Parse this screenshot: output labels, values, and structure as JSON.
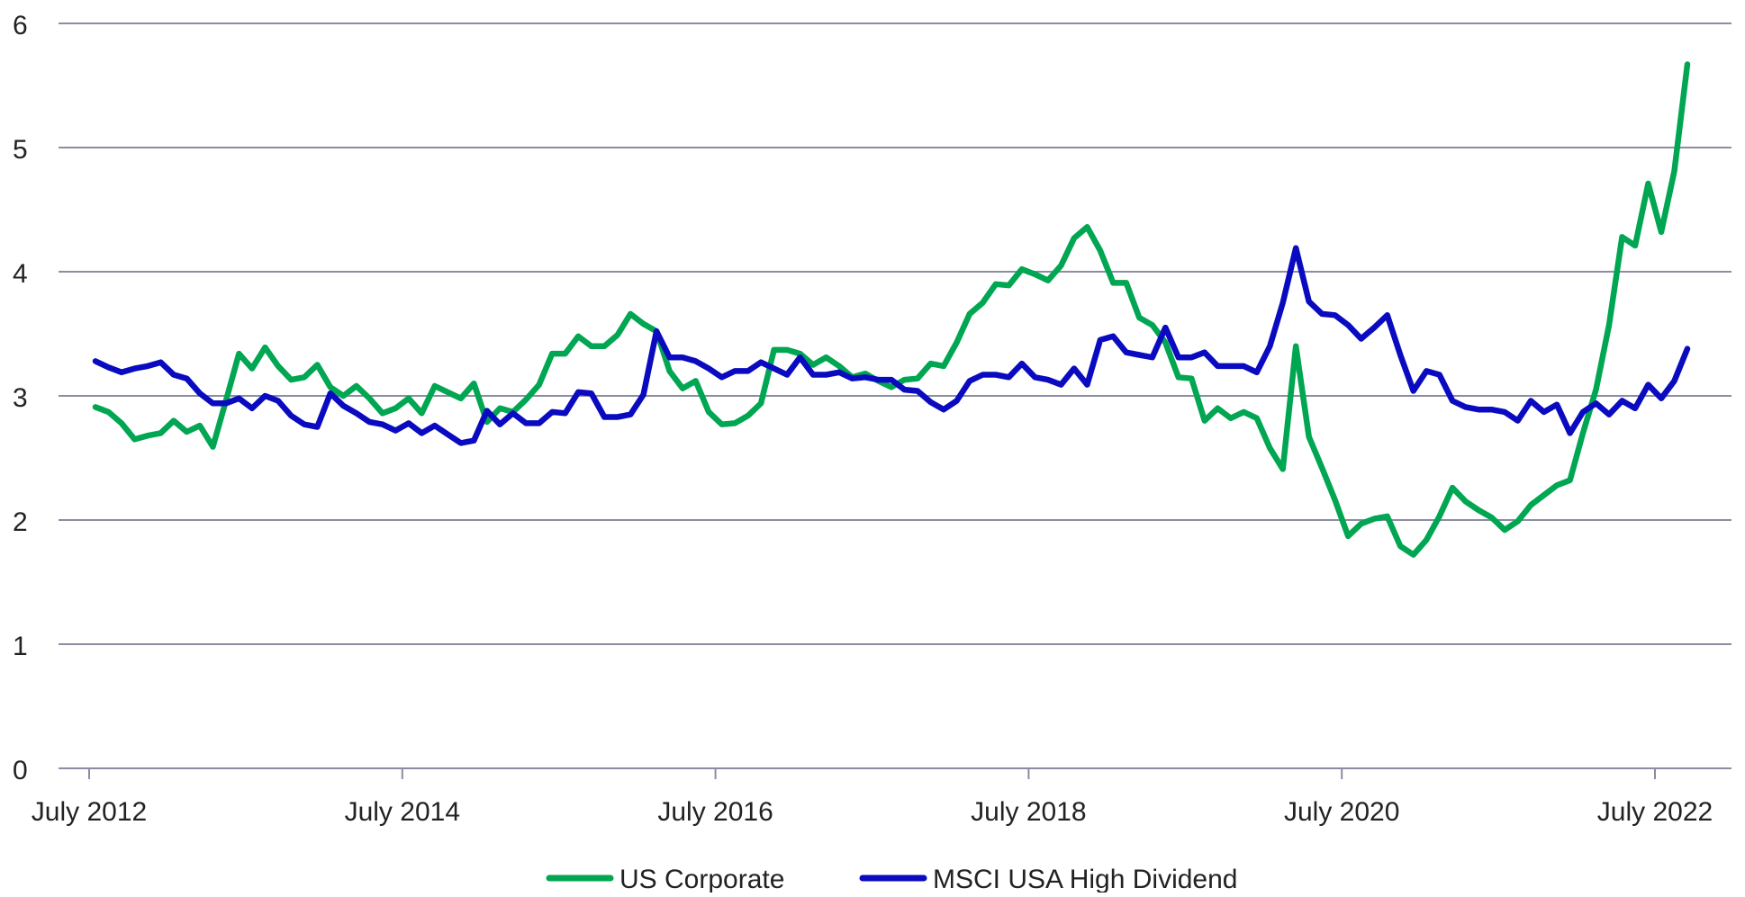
{
  "chart_data": {
    "type": "line",
    "title": "",
    "xlabel": "",
    "ylabel": "",
    "ylim": [
      0,
      6
    ],
    "yticks": [
      "0",
      "1",
      "2",
      "3",
      "4",
      "5",
      "6"
    ],
    "xtick_labels": [
      "July 2012",
      "July 2014",
      "July 2016",
      "July 2018",
      "July 2020",
      "July 2022"
    ],
    "xtick_dates": [
      "2012-07",
      "2014-07",
      "2016-07",
      "2018-07",
      "2020-07",
      "2022-07"
    ],
    "grid": "horizontal",
    "legend_position": "bottom",
    "x": [
      "2012-07",
      "2012-08",
      "2012-09",
      "2012-10",
      "2012-11",
      "2012-12",
      "2013-01",
      "2013-02",
      "2013-03",
      "2013-04",
      "2013-05",
      "2013-06",
      "2013-07",
      "2013-08",
      "2013-09",
      "2013-10",
      "2013-11",
      "2013-12",
      "2014-01",
      "2014-02",
      "2014-03",
      "2014-04",
      "2014-05",
      "2014-06",
      "2014-07",
      "2014-08",
      "2014-09",
      "2014-10",
      "2014-11",
      "2014-12",
      "2015-01",
      "2015-02",
      "2015-03",
      "2015-04",
      "2015-05",
      "2015-06",
      "2015-07",
      "2015-08",
      "2015-09",
      "2015-10",
      "2015-11",
      "2015-12",
      "2016-01",
      "2016-02",
      "2016-03",
      "2016-04",
      "2016-05",
      "2016-06",
      "2016-07",
      "2016-08",
      "2016-09",
      "2016-10",
      "2016-11",
      "2016-12",
      "2017-01",
      "2017-02",
      "2017-03",
      "2017-04",
      "2017-05",
      "2017-06",
      "2017-07",
      "2017-08",
      "2017-09",
      "2017-10",
      "2017-11",
      "2017-12",
      "2018-01",
      "2018-02",
      "2018-03",
      "2018-04",
      "2018-05",
      "2018-06",
      "2018-07",
      "2018-08",
      "2018-09",
      "2018-10",
      "2018-11",
      "2018-12",
      "2019-01",
      "2019-02",
      "2019-03",
      "2019-04",
      "2019-05",
      "2019-06",
      "2019-07",
      "2019-08",
      "2019-09",
      "2019-10",
      "2019-11",
      "2019-12",
      "2020-01",
      "2020-02",
      "2020-03",
      "2020-04",
      "2020-05",
      "2020-06",
      "2020-07",
      "2020-08",
      "2020-09",
      "2020-10",
      "2020-11",
      "2020-12",
      "2021-01",
      "2021-02",
      "2021-03",
      "2021-04",
      "2021-05",
      "2021-06",
      "2021-07",
      "2021-08",
      "2021-09",
      "2021-10",
      "2021-11",
      "2021-12",
      "2022-01",
      "2022-02",
      "2022-03",
      "2022-04",
      "2022-05",
      "2022-06",
      "2022-07",
      "2022-08",
      "2022-09"
    ],
    "series": [
      {
        "name": "US Corporate",
        "color": "#00a651",
        "values": [
          2.91,
          2.87,
          2.78,
          2.65,
          2.68,
          2.7,
          2.8,
          2.71,
          2.76,
          2.59,
          2.96,
          3.34,
          3.22,
          3.39,
          3.24,
          3.13,
          3.15,
          3.25,
          3.07,
          3.0,
          3.08,
          2.98,
          2.86,
          2.9,
          2.98,
          2.86,
          3.08,
          3.03,
          2.98,
          3.1,
          2.79,
          2.9,
          2.87,
          2.97,
          3.09,
          3.34,
          3.34,
          3.48,
          3.4,
          3.4,
          3.49,
          3.66,
          3.58,
          3.52,
          3.2,
          3.06,
          3.12,
          2.87,
          2.77,
          2.78,
          2.84,
          2.94,
          3.37,
          3.37,
          3.34,
          3.25,
          3.31,
          3.24,
          3.15,
          3.18,
          3.12,
          3.07,
          3.13,
          3.14,
          3.26,
          3.24,
          3.43,
          3.66,
          3.75,
          3.9,
          3.89,
          4.02,
          3.98,
          3.93,
          4.05,
          4.27,
          4.36,
          4.17,
          3.91,
          3.91,
          3.63,
          3.57,
          3.43,
          3.15,
          3.14,
          2.8,
          2.9,
          2.82,
          2.87,
          2.82,
          2.58,
          2.41,
          3.4,
          2.67,
          2.42,
          2.16,
          1.87,
          1.97,
          2.01,
          2.03,
          1.79,
          1.72,
          1.84,
          2.03,
          2.26,
          2.15,
          2.08,
          2.02,
          1.92,
          1.99,
          2.12,
          2.2,
          2.28,
          2.32,
          2.7,
          3.05,
          3.57,
          4.28,
          4.21,
          4.71,
          4.32,
          4.81,
          5.67
        ]
      },
      {
        "name": "MSCI USA High Dividend",
        "color": "#0a0ac0",
        "values": [
          3.28,
          3.23,
          3.19,
          3.22,
          3.24,
          3.27,
          3.17,
          3.14,
          3.02,
          2.94,
          2.94,
          2.98,
          2.9,
          3.0,
          2.96,
          2.84,
          2.77,
          2.75,
          3.02,
          2.92,
          2.86,
          2.79,
          2.77,
          2.72,
          2.78,
          2.7,
          2.76,
          2.69,
          2.62,
          2.64,
          2.88,
          2.77,
          2.86,
          2.78,
          2.78,
          2.87,
          2.86,
          3.03,
          3.02,
          2.83,
          2.83,
          2.85,
          3.01,
          3.52,
          3.31,
          3.31,
          3.28,
          3.22,
          3.15,
          3.2,
          3.2,
          3.27,
          3.22,
          3.17,
          3.31,
          3.17,
          3.17,
          3.19,
          3.14,
          3.15,
          3.13,
          3.13,
          3.05,
          3.04,
          2.95,
          2.89,
          2.96,
          3.12,
          3.17,
          3.17,
          3.15,
          3.26,
          3.15,
          3.13,
          3.09,
          3.22,
          3.09,
          3.45,
          3.48,
          3.35,
          3.33,
          3.31,
          3.55,
          3.31,
          3.31,
          3.35,
          3.24,
          3.24,
          3.24,
          3.19,
          3.4,
          3.75,
          4.19,
          3.76,
          3.66,
          3.65,
          3.57,
          3.46,
          3.55,
          3.65,
          3.33,
          3.04,
          3.2,
          3.17,
          2.96,
          2.91,
          2.89,
          2.89,
          2.87,
          2.8,
          2.96,
          2.87,
          2.93,
          2.7,
          2.87,
          2.94,
          2.85,
          2.96,
          2.9,
          3.09,
          2.98,
          3.12,
          3.38
        ]
      }
    ],
    "gridline_color": "#8c8ca3"
  }
}
